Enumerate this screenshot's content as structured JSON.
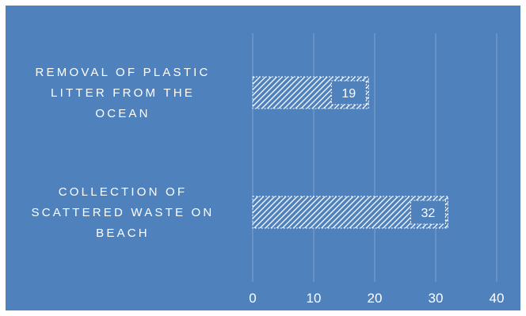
{
  "chart_data": {
    "type": "bar",
    "orientation": "horizontal",
    "categories": [
      [
        "REMOVAL OF PLASTIC",
        "LITTER FROM THE",
        "OCEAN"
      ],
      [
        "COLLECTION OF",
        "SCATTERED WASTE ON",
        "BEACH"
      ]
    ],
    "values": [
      19,
      32
    ],
    "data_labels": [
      "19",
      "32"
    ],
    "xlim": [
      0,
      40
    ],
    "x_ticks": [
      "0",
      "10",
      "20",
      "30",
      "40"
    ],
    "title": "",
    "xlabel": "",
    "ylabel": "",
    "grid": "vertical",
    "legend": "none",
    "colors": {
      "background": "#4f81bd",
      "outer_border": "#ffffff",
      "gridline": "#7fa3d1",
      "bar_fill": "#4f81bd",
      "bar_hatch": "#ffffff",
      "text": "#ffffff"
    }
  }
}
